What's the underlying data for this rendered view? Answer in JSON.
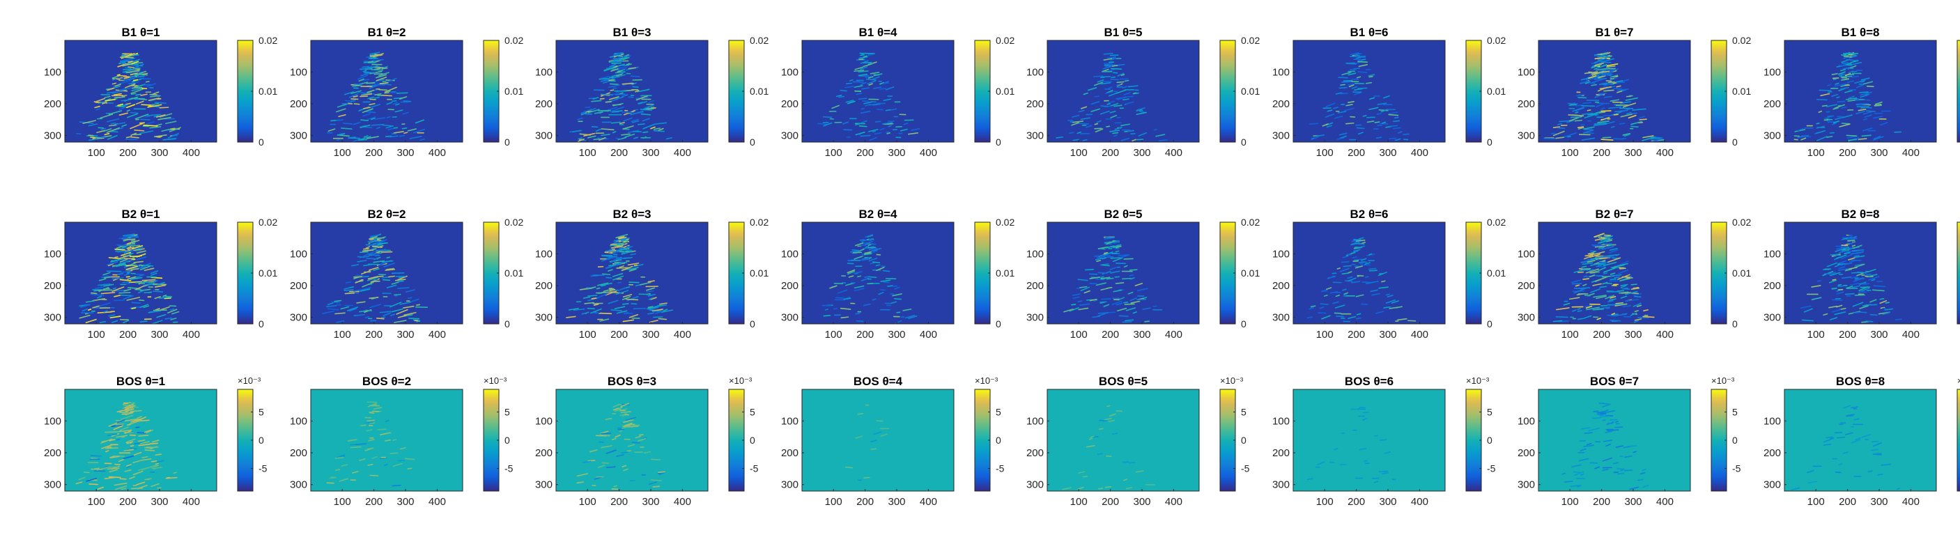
{
  "chart_data": {
    "type": "heatmap",
    "layout": {
      "rows": 3,
      "cols": 8
    },
    "row_labels": [
      "B1",
      "B2",
      "BOS"
    ],
    "theta_symbol": "θ",
    "panels_per_row": [
      1,
      2,
      3,
      4,
      5,
      6,
      7,
      8
    ],
    "image_extent": {
      "x": [
        1,
        480
      ],
      "y": [
        1,
        320
      ]
    },
    "xticks": [
      100,
      200,
      300,
      400
    ],
    "yticks": [
      100,
      200,
      300
    ],
    "xtick_labels": [
      "100",
      "200",
      "300",
      "400"
    ],
    "ytick_labels": [
      "100",
      "200",
      "300"
    ],
    "rows": [
      {
        "label": "B1",
        "clim": [
          0,
          0.02
        ],
        "colorbar_ticks": [
          0,
          0.01,
          0.02
        ],
        "colorbar_tick_labels": [
          "0",
          "0.01",
          "0.02"
        ],
        "colorbar_exponent": "",
        "colormap": "parula",
        "background_value": 0.001,
        "titles": [
          "B1 θ=1",
          "B1 θ=2",
          "B1 θ=3",
          "B1 θ=4",
          "B1 θ=5",
          "B1 θ=6",
          "B1 θ=7",
          "B1 θ=8"
        ],
        "intensity": [
          1.0,
          0.7,
          0.8,
          0.35,
          0.4,
          0.3,
          0.9,
          0.6
        ]
      },
      {
        "label": "B2",
        "clim": [
          0,
          0.02
        ],
        "colorbar_ticks": [
          0,
          0.01,
          0.02
        ],
        "colorbar_tick_labels": [
          "0",
          "0.01",
          "0.02"
        ],
        "colorbar_exponent": "",
        "colormap": "parula",
        "background_value": 0.001,
        "titles": [
          "B2 θ=1",
          "B2 θ=2",
          "B2 θ=3",
          "B2 θ=4",
          "B2 θ=5",
          "B2 θ=6",
          "B2 θ=7",
          "B2 θ=8"
        ],
        "intensity": [
          1.0,
          0.7,
          0.8,
          0.35,
          0.4,
          0.3,
          0.9,
          0.6
        ]
      },
      {
        "label": "BOS",
        "clim": [
          -0.009,
          0.009
        ],
        "colorbar_ticks": [
          -0.005,
          0,
          0.005
        ],
        "colorbar_tick_labels": [
          "-5",
          "0",
          "5"
        ],
        "colorbar_exponent": "×10⁻³",
        "colormap": "parula",
        "background_value": 0.0,
        "titles": [
          "BOS θ=1",
          "BOS θ=2",
          "BOS θ=3",
          "BOS θ=4",
          "BOS θ=5",
          "BOS θ=6",
          "BOS θ=7",
          "BOS θ=8"
        ],
        "intensity": [
          0.8,
          0.4,
          0.5,
          0.15,
          0.2,
          0.15,
          0.5,
          0.3
        ]
      }
    ]
  }
}
